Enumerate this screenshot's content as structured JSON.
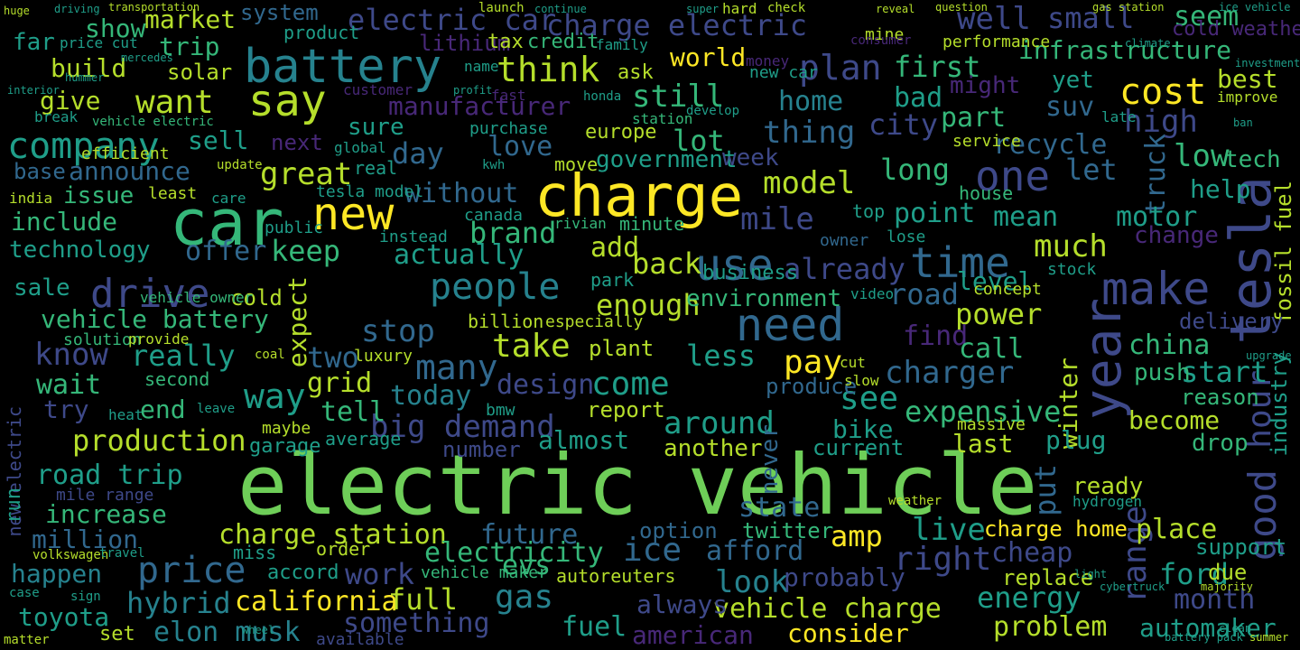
{
  "palette": {
    "background": "#000000",
    "yellow": "#fde725",
    "lime": "#b5de2b",
    "green": "#6ece58",
    "sea": "#35b779",
    "teal": "#1f9e89",
    "cyan": "#26828e",
    "blue": "#31688e",
    "indigo": "#3e4989",
    "purple": "#482878",
    "dark": "#440154"
  },
  "words": [
    {
      "text": "electric vehicle",
      "color": "green"
    },
    {
      "text": "charge",
      "color": "yellow"
    },
    {
      "text": "car",
      "color": "sea"
    },
    {
      "text": "battery",
      "color": "cyan"
    },
    {
      "text": "new",
      "color": "yellow"
    },
    {
      "text": "tesla",
      "color": "indigo"
    },
    {
      "text": "need",
      "color": "blue"
    },
    {
      "text": "make",
      "color": "indigo"
    },
    {
      "text": "year",
      "color": "indigo"
    },
    {
      "text": "use",
      "color": "blue"
    },
    {
      "text": "time",
      "color": "blue"
    },
    {
      "text": "say",
      "color": "lime"
    },
    {
      "text": "people",
      "color": "cyan"
    },
    {
      "text": "one",
      "color": "indigo"
    },
    {
      "text": "drive",
      "color": "indigo"
    },
    {
      "text": "company",
      "color": "teal"
    },
    {
      "text": "think",
      "color": "lime"
    },
    {
      "text": "want",
      "color": "lime"
    },
    {
      "text": "cost",
      "color": "yellow"
    },
    {
      "text": "electric car",
      "color": "indigo"
    },
    {
      "text": "charge electric",
      "color": "indigo"
    },
    {
      "text": "price",
      "color": "blue"
    },
    {
      "text": "range",
      "color": "indigo"
    },
    {
      "text": "good",
      "color": "indigo"
    },
    {
      "text": "hour",
      "color": "indigo"
    },
    {
      "text": "take",
      "color": "lime"
    },
    {
      "text": "come",
      "color": "teal"
    },
    {
      "text": "charge station",
      "color": "lime"
    },
    {
      "text": "future",
      "color": "blue"
    },
    {
      "text": "amp",
      "color": "yellow"
    },
    {
      "text": "vehicle charge",
      "color": "lime"
    },
    {
      "text": "afford",
      "color": "blue"
    },
    {
      "text": "look",
      "color": "cyan"
    },
    {
      "text": "work",
      "color": "indigo"
    },
    {
      "text": "well",
      "color": "indigo"
    },
    {
      "text": "model",
      "color": "lime"
    },
    {
      "text": "still",
      "color": "sea"
    },
    {
      "text": "first",
      "color": "sea"
    },
    {
      "text": "infrastructure",
      "color": "sea"
    },
    {
      "text": "market",
      "color": "lime"
    },
    {
      "text": "build",
      "color": "lime"
    },
    {
      "text": "home",
      "color": "cyan"
    },
    {
      "text": "thing",
      "color": "blue"
    },
    {
      "text": "plan",
      "color": "indigo"
    },
    {
      "text": "world",
      "color": "yellow"
    },
    {
      "text": "manufacturer",
      "color": "purple"
    },
    {
      "text": "high",
      "color": "indigo"
    },
    {
      "text": "small",
      "color": "indigo"
    },
    {
      "text": "seem",
      "color": "sea"
    },
    {
      "text": "best",
      "color": "lime"
    },
    {
      "text": "cold weather",
      "color": "purple"
    },
    {
      "text": "part",
      "color": "sea"
    },
    {
      "text": "suv",
      "color": "blue"
    },
    {
      "text": "low",
      "color": "sea"
    },
    {
      "text": "truck",
      "color": "blue"
    },
    {
      "text": "tech",
      "color": "sea"
    },
    {
      "text": "fossil fuel",
      "color": "lime"
    },
    {
      "text": "recycle",
      "color": "blue"
    },
    {
      "text": "long",
      "color": "sea"
    },
    {
      "text": "let",
      "color": "blue"
    },
    {
      "text": "great",
      "color": "lime"
    },
    {
      "text": "base",
      "color": "blue"
    },
    {
      "text": "announce",
      "color": "blue"
    },
    {
      "text": "issue",
      "color": "sea"
    },
    {
      "text": "include",
      "color": "sea"
    },
    {
      "text": "technology",
      "color": "teal"
    },
    {
      "text": "sale",
      "color": "teal"
    },
    {
      "text": "vehicle battery",
      "color": "sea"
    },
    {
      "text": "know",
      "color": "indigo"
    },
    {
      "text": "really",
      "color": "teal"
    },
    {
      "text": "wait",
      "color": "sea"
    },
    {
      "text": "end",
      "color": "sea"
    },
    {
      "text": "production",
      "color": "lime"
    },
    {
      "text": "road trip",
      "color": "teal"
    },
    {
      "text": "increase",
      "color": "sea"
    },
    {
      "text": "million",
      "color": "blue"
    },
    {
      "text": "happen",
      "color": "cyan"
    },
    {
      "text": "hybrid",
      "color": "cyan"
    },
    {
      "text": "toyota",
      "color": "teal"
    },
    {
      "text": "elon musk",
      "color": "cyan"
    },
    {
      "text": "california",
      "color": "yellow"
    },
    {
      "text": "full",
      "color": "lime"
    },
    {
      "text": "something",
      "color": "indigo"
    },
    {
      "text": "gas",
      "color": "cyan"
    },
    {
      "text": "fuel",
      "color": "teal"
    },
    {
      "text": "evs",
      "color": "sea"
    },
    {
      "text": "ice",
      "color": "blue"
    },
    {
      "text": "electricity",
      "color": "sea"
    },
    {
      "text": "big demand",
      "color": "indigo"
    },
    {
      "text": "grid",
      "color": "lime"
    },
    {
      "text": "today",
      "color": "cyan"
    },
    {
      "text": "see",
      "color": "teal"
    },
    {
      "text": "around",
      "color": "teal"
    },
    {
      "text": "expensive",
      "color": "sea"
    },
    {
      "text": "become",
      "color": "lime"
    },
    {
      "text": "charger",
      "color": "blue"
    },
    {
      "text": "start",
      "color": "teal"
    },
    {
      "text": "china",
      "color": "sea"
    },
    {
      "text": "power",
      "color": "lime"
    },
    {
      "text": "find",
      "color": "purple"
    },
    {
      "text": "call",
      "color": "sea"
    },
    {
      "text": "much",
      "color": "lime"
    },
    {
      "text": "mean",
      "color": "teal"
    },
    {
      "text": "motor",
      "color": "teal"
    },
    {
      "text": "point",
      "color": "teal"
    },
    {
      "text": "level",
      "color": "teal"
    },
    {
      "text": "change",
      "color": "purple"
    },
    {
      "text": "help",
      "color": "teal"
    },
    {
      "text": "government",
      "color": "teal"
    },
    {
      "text": "day",
      "color": "blue"
    },
    {
      "text": "love",
      "color": "blue"
    },
    {
      "text": "lot",
      "color": "sea"
    },
    {
      "text": "without",
      "color": "blue"
    },
    {
      "text": "brand",
      "color": "sea"
    },
    {
      "text": "actually",
      "color": "teal"
    },
    {
      "text": "add",
      "color": "lime"
    },
    {
      "text": "back",
      "color": "lime"
    },
    {
      "text": "enough",
      "color": "lime"
    },
    {
      "text": "keep",
      "color": "sea"
    },
    {
      "text": "offer",
      "color": "blue"
    },
    {
      "text": "mile",
      "color": "indigo"
    },
    {
      "text": "road",
      "color": "blue"
    },
    {
      "text": "environment",
      "color": "sea"
    },
    {
      "text": "already",
      "color": "indigo"
    },
    {
      "text": "business",
      "color": "teal"
    },
    {
      "text": "pay",
      "color": "yellow"
    },
    {
      "text": "less",
      "color": "teal"
    },
    {
      "text": "many",
      "color": "blue"
    },
    {
      "text": "stop",
      "color": "blue"
    },
    {
      "text": "two",
      "color": "blue"
    },
    {
      "text": "expect",
      "color": "lime"
    },
    {
      "text": "way",
      "color": "teal"
    },
    {
      "text": "tell",
      "color": "sea"
    },
    {
      "text": "design",
      "color": "indigo"
    },
    {
      "text": "report",
      "color": "lime"
    },
    {
      "text": "almost",
      "color": "teal"
    },
    {
      "text": "number",
      "color": "indigo"
    },
    {
      "text": "another",
      "color": "lime"
    },
    {
      "text": "never",
      "color": "blue"
    },
    {
      "text": "current",
      "color": "teal"
    },
    {
      "text": "last",
      "color": "lime"
    },
    {
      "text": "state",
      "color": "blue"
    },
    {
      "text": "twitter",
      "color": "sea"
    },
    {
      "text": "option",
      "color": "blue"
    },
    {
      "text": "live",
      "color": "teal"
    },
    {
      "text": "charge home",
      "color": "yellow"
    },
    {
      "text": "place",
      "color": "lime"
    },
    {
      "text": "right",
      "color": "indigo"
    },
    {
      "text": "cheap",
      "color": "indigo"
    },
    {
      "text": "replace",
      "color": "lime"
    },
    {
      "text": "ford",
      "color": "teal"
    },
    {
      "text": "energy",
      "color": "teal"
    },
    {
      "text": "problem",
      "color": "lime"
    },
    {
      "text": "automaker",
      "color": "teal"
    },
    {
      "text": "month",
      "color": "indigo"
    },
    {
      "text": "consider",
      "color": "yellow"
    },
    {
      "text": "probably",
      "color": "indigo"
    },
    {
      "text": "vehicle maker",
      "color": "sea"
    },
    {
      "text": "always",
      "color": "indigo"
    },
    {
      "text": "autoreuters",
      "color": "lime"
    },
    {
      "text": "american",
      "color": "purple"
    },
    {
      "text": "winter",
      "color": "lime"
    },
    {
      "text": "push",
      "color": "sea"
    },
    {
      "text": "reason",
      "color": "sea"
    },
    {
      "text": "drop",
      "color": "sea"
    },
    {
      "text": "plug",
      "color": "teal"
    },
    {
      "text": "delivery",
      "color": "indigo"
    },
    {
      "text": "industry",
      "color": "teal"
    },
    {
      "text": "bike",
      "color": "teal"
    },
    {
      "text": "produce",
      "color": "blue"
    },
    {
      "text": "put",
      "color": "blue"
    },
    {
      "text": "ready",
      "color": "lime"
    },
    {
      "text": "support",
      "color": "teal"
    },
    {
      "text": "due",
      "color": "lime"
    },
    {
      "text": "lithium",
      "color": "purple"
    },
    {
      "text": "tax",
      "color": "lime"
    },
    {
      "text": "credit",
      "color": "sea"
    },
    {
      "text": "system",
      "color": "blue"
    },
    {
      "text": "show",
      "color": "sea"
    },
    {
      "text": "trip",
      "color": "sea"
    },
    {
      "text": "give",
      "color": "lime"
    },
    {
      "text": "solar",
      "color": "lime"
    },
    {
      "text": "far",
      "color": "teal"
    },
    {
      "text": "sell",
      "color": "teal"
    },
    {
      "text": "next",
      "color": "purple"
    },
    {
      "text": "sure",
      "color": "teal"
    },
    {
      "text": "ask",
      "color": "lime"
    },
    {
      "text": "yet",
      "color": "teal"
    },
    {
      "text": "bad",
      "color": "teal"
    },
    {
      "text": "city",
      "color": "indigo"
    },
    {
      "text": "might",
      "color": "purple"
    },
    {
      "text": "performance",
      "color": "lime"
    },
    {
      "text": "mine",
      "color": "lime"
    },
    {
      "text": "product",
      "color": "teal"
    },
    {
      "text": "money",
      "color": "purple"
    },
    {
      "text": "new car",
      "color": "teal"
    },
    {
      "text": "minute",
      "color": "sea"
    },
    {
      "text": "rivian",
      "color": "sea"
    },
    {
      "text": "canada",
      "color": "teal"
    },
    {
      "text": "europe",
      "color": "lime"
    },
    {
      "text": "week",
      "color": "indigo"
    },
    {
      "text": "house",
      "color": "sea"
    },
    {
      "text": "top",
      "color": "teal"
    },
    {
      "text": "lose",
      "color": "teal"
    },
    {
      "text": "owner",
      "color": "blue"
    },
    {
      "text": "stock",
      "color": "teal"
    },
    {
      "text": "concept",
      "color": "lime"
    },
    {
      "text": "video",
      "color": "teal"
    },
    {
      "text": "billion",
      "color": "lime"
    },
    {
      "text": "especially",
      "color": "lime"
    },
    {
      "text": "plant",
      "color": "lime"
    },
    {
      "text": "bmw",
      "color": "teal"
    },
    {
      "text": "park",
      "color": "teal"
    },
    {
      "text": "move",
      "color": "lime"
    },
    {
      "text": "cold",
      "color": "lime"
    },
    {
      "text": "solution",
      "color": "sea"
    },
    {
      "text": "second",
      "color": "sea"
    },
    {
      "text": "provide",
      "color": "lime"
    },
    {
      "text": "luxury",
      "color": "lime"
    },
    {
      "text": "garage",
      "color": "teal"
    },
    {
      "text": "maybe",
      "color": "lime"
    },
    {
      "text": "average",
      "color": "teal"
    },
    {
      "text": "accord",
      "color": "teal"
    },
    {
      "text": "order",
      "color": "lime"
    },
    {
      "text": "miss",
      "color": "teal"
    },
    {
      "text": "available",
      "color": "indigo"
    },
    {
      "text": "mile range",
      "color": "indigo"
    },
    {
      "text": "set",
      "color": "lime"
    },
    {
      "text": "try",
      "color": "indigo"
    },
    {
      "text": "vehicle owner",
      "color": "sea"
    },
    {
      "text": "public",
      "color": "teal"
    },
    {
      "text": "instead",
      "color": "teal"
    },
    {
      "text": "tesla model",
      "color": "teal"
    },
    {
      "text": "real",
      "color": "teal"
    },
    {
      "text": "efficient",
      "color": "lime"
    },
    {
      "text": "new electric",
      "color": "indigo"
    },
    {
      "text": "run",
      "color": "teal"
    },
    {
      "text": "india",
      "color": "lime"
    },
    {
      "text": "least",
      "color": "lime"
    },
    {
      "text": "care",
      "color": "teal"
    },
    {
      "text": "customer",
      "color": "purple"
    },
    {
      "text": "fast",
      "color": "purple"
    },
    {
      "text": "purchase",
      "color": "teal"
    },
    {
      "text": "service",
      "color": "lime"
    },
    {
      "text": "name",
      "color": "teal"
    },
    {
      "text": "kwh",
      "color": "teal"
    },
    {
      "text": "honda",
      "color": "teal"
    },
    {
      "text": "station",
      "color": "sea"
    },
    {
      "text": "develop",
      "color": "teal"
    },
    {
      "text": "family",
      "color": "teal"
    },
    {
      "text": "price cut",
      "color": "teal"
    },
    {
      "text": "break",
      "color": "teal"
    },
    {
      "text": "vehicle electric",
      "color": "sea"
    },
    {
      "text": "mercedes",
      "color": "teal"
    },
    {
      "text": "coal",
      "color": "lime"
    },
    {
      "text": "cut",
      "color": "lime"
    },
    {
      "text": "slow",
      "color": "lime"
    },
    {
      "text": "hydrogen",
      "color": "teal"
    },
    {
      "text": "massive",
      "color": "lime"
    },
    {
      "text": "weather",
      "color": "lime"
    },
    {
      "text": "heat",
      "color": "teal"
    },
    {
      "text": "global",
      "color": "teal"
    },
    {
      "text": "update",
      "color": "lime"
    },
    {
      "text": "sign",
      "color": "teal"
    },
    {
      "text": "volkswagen",
      "color": "lime"
    },
    {
      "text": "travel",
      "color": "teal"
    },
    {
      "text": "case",
      "color": "teal"
    },
    {
      "text": "matter",
      "color": "lime"
    },
    {
      "text": "launch",
      "color": "lime"
    },
    {
      "text": "hard",
      "color": "lime"
    },
    {
      "text": "check",
      "color": "lime"
    },
    {
      "text": "transportation",
      "color": "lime"
    },
    {
      "text": "huge",
      "color": "lime"
    },
    {
      "text": "driving",
      "color": "teal"
    },
    {
      "text": "continue",
      "color": "teal"
    },
    {
      "text": "super",
      "color": "teal"
    },
    {
      "text": "gas station",
      "color": "lime"
    },
    {
      "text": "ice vehicle",
      "color": "teal"
    },
    {
      "text": "reveal",
      "color": "lime"
    },
    {
      "text": "question",
      "color": "lime"
    },
    {
      "text": "consumer",
      "color": "purple"
    },
    {
      "text": "climate",
      "color": "teal"
    },
    {
      "text": "investment",
      "color": "teal"
    },
    {
      "text": "improve",
      "color": "lime"
    },
    {
      "text": "late",
      "color": "teal"
    },
    {
      "text": "ban",
      "color": "teal"
    },
    {
      "text": "wheel",
      "color": "teal"
    },
    {
      "text": "hummer",
      "color": "teal"
    },
    {
      "text": "interior",
      "color": "teal"
    },
    {
      "text": "battery pack",
      "color": "teal"
    },
    {
      "text": "profit",
      "color": "teal"
    },
    {
      "text": "upgrade",
      "color": "teal"
    },
    {
      "text": "majority",
      "color": "lime"
    },
    {
      "text": "cybertruck",
      "color": "teal"
    },
    {
      "text": "light",
      "color": "teal"
    },
    {
      "text": "summer",
      "color": "lime"
    },
    {
      "text": "leave",
      "color": "teal"
    },
    {
      "text": "clean",
      "color": "teal"
    },
    {
      "text": "work",
      "color": "teal"
    }
  ]
}
